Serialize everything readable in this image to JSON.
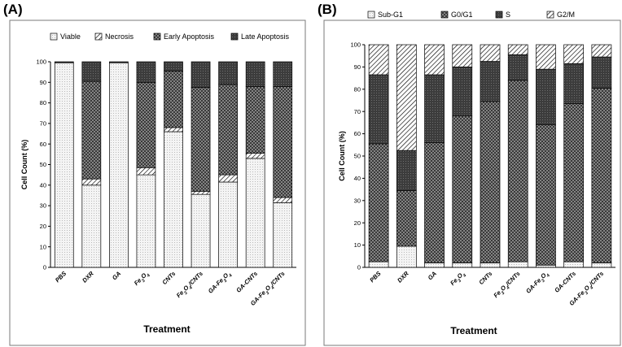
{
  "chart_data": [
    {
      "panel": "(A)",
      "type": "bar",
      "stacked": true,
      "title": "",
      "xlabel": "Treatment",
      "ylabel": "Cell Count (%)",
      "ylim": [
        0,
        100
      ],
      "yticks": [
        0,
        10,
        20,
        30,
        40,
        50,
        60,
        70,
        80,
        90,
        100
      ],
      "legend_position": "top",
      "categories": [
        "PBS",
        "DXR",
        "GA",
        "Fe3O4",
        "CNTs",
        "Fe3O4/CNTs",
        "GA-Fe3O4",
        "GA-CNTs",
        "GA-Fe3O4/CNTs"
      ],
      "series": [
        {
          "name": "Viable",
          "pattern": "dots",
          "values": [
            99.5,
            40,
            99.5,
            45,
            66,
            35.5,
            41.5,
            53,
            31.5
          ]
        },
        {
          "name": "Necrosis",
          "pattern": "hatch",
          "values": [
            0,
            3,
            0,
            3.5,
            2,
            1.5,
            3.5,
            2.5,
            2.5
          ]
        },
        {
          "name": "Early Apoptosis",
          "pattern": "crosshatch",
          "values": [
            0,
            47.5,
            0,
            41.5,
            27.5,
            50.5,
            44,
            32.5,
            54
          ]
        },
        {
          "name": "Late Apoptosis",
          "pattern": "dark",
          "values": [
            0.5,
            9.5,
            0.5,
            10,
            4.5,
            12.5,
            11,
            12,
            12
          ]
        }
      ]
    },
    {
      "panel": "(B)",
      "type": "bar",
      "stacked": true,
      "title": "",
      "xlabel": "Treatment",
      "ylabel": "Cell Count (%)",
      "ylim": [
        0,
        100
      ],
      "yticks": [
        0,
        10,
        20,
        30,
        40,
        50,
        60,
        70,
        80,
        90,
        100
      ],
      "legend_position": "top",
      "categories": [
        "PBS",
        "DXR",
        "GA",
        "Fe3O4",
        "CNTs",
        "Fe3O4/CNTs",
        "GA-Fe3O4",
        "GA-CNTs",
        "GA-Fe3O4/CNTs"
      ],
      "series": [
        {
          "name": "Sub-G1",
          "pattern": "dots",
          "values": [
            2.5,
            9.5,
            2,
            2,
            2,
            2.5,
            1,
            2.5,
            2
          ]
        },
        {
          "name": "G0/G1",
          "pattern": "crosshatch",
          "values": [
            53,
            25,
            54,
            66,
            72.5,
            81.5,
            63,
            71,
            78.5
          ]
        },
        {
          "name": "S",
          "pattern": "dark",
          "values": [
            31,
            18,
            30.5,
            22,
            18,
            11.5,
            25,
            18,
            14
          ]
        },
        {
          "name": "G2/M",
          "pattern": "hatch",
          "values": [
            13.5,
            47.5,
            13.5,
            10,
            7.5,
            4.5,
            11,
            8.5,
            5.5
          ]
        }
      ]
    }
  ]
}
